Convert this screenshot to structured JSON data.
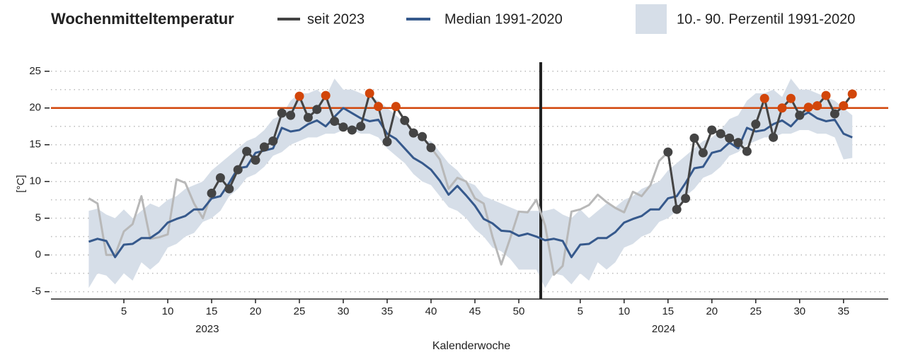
{
  "chart_data": {
    "type": "line",
    "title": "Wochenmitteltemperatur",
    "y_label": "[°C]",
    "x_label": "Kalenderwoche",
    "categories": [
      null,
      null,
      null,
      null,
      "5",
      null,
      null,
      null,
      null,
      "10",
      null,
      null,
      null,
      null,
      "15",
      null,
      null,
      null,
      null,
      "20",
      null,
      null,
      null,
      null,
      "25",
      null,
      null,
      null,
      null,
      "30",
      null,
      null,
      null,
      null,
      "35",
      null,
      null,
      null,
      null,
      "40",
      null,
      null,
      null,
      null,
      "45",
      null,
      null,
      null,
      null,
      "50",
      null,
      null,
      null,
      null,
      null,
      null,
      "5",
      null,
      null,
      null,
      null,
      "10",
      null,
      null,
      null,
      null,
      "15",
      null,
      null,
      null,
      null,
      "20",
      null,
      null,
      null,
      null,
      "25",
      null,
      null,
      null,
      null,
      "30",
      null,
      null,
      null,
      null,
      "35",
      null
    ],
    "x_groups": [
      {
        "label": "2023",
        "size": 52
      },
      {
        "label": "2024",
        "size": 36
      }
    ],
    "ylim": [
      -6,
      27
    ],
    "yticks": [
      -5,
      0,
      5,
      10,
      15,
      20,
      25
    ],
    "yminor_ticks": [
      -2.5,
      2.5,
      7.5,
      12.5,
      17.5,
      22.5
    ],
    "grid": true,
    "threshold": {
      "value": 20,
      "color": "#d2460a"
    },
    "highlight": [
      [
        14,
        39
      ],
      [
        66,
        87
      ]
    ],
    "series": [
      {
        "name": "seit 2023",
        "color": "#444444",
        "light_color": "#b8b8b8",
        "highlight_color": "#d2460a",
        "values": [
          7.7,
          7.0,
          0.0,
          0.0,
          3.2,
          4.2,
          8.0,
          2.2,
          2.4,
          2.8,
          10.3,
          9.8,
          7.0,
          5.0,
          8.4,
          10.5,
          9.0,
          11.6,
          14.1,
          12.9,
          14.7,
          15.5,
          19.3,
          19.0,
          21.6,
          18.7,
          19.8,
          21.7,
          18.2,
          17.4,
          17.0,
          17.5,
          22.0,
          20.2,
          15.4,
          20.2,
          18.3,
          16.6,
          16.1,
          14.6,
          13.0,
          9.0,
          10.5,
          10.0,
          7.7,
          7.0,
          2.5,
          -1.3,
          2.2,
          5.9,
          5.8,
          7.5,
          4.0,
          -2.7,
          -1.5,
          5.9,
          6.2,
          6.8,
          8.2,
          7.2,
          6.4,
          5.8,
          8.6,
          8.0,
          9.5,
          12.8,
          14.0,
          6.2,
          7.7,
          15.9,
          13.9,
          17.0,
          16.5,
          15.9,
          15.3,
          14.1,
          17.8,
          21.3,
          16.0,
          20.0,
          21.3,
          19.0,
          20.1,
          20.3,
          21.7,
          19.2,
          20.3,
          21.9
        ]
      },
      {
        "name": "Median 1991-2020",
        "color": "#36598c",
        "values": [
          1.8,
          2.2,
          1.9,
          -0.3,
          1.4,
          1.5,
          2.3,
          2.3,
          3.1,
          4.4,
          4.9,
          5.3,
          6.2,
          6.2,
          7.7,
          8.0,
          9.8,
          11.8,
          12.0,
          13.9,
          14.2,
          14.5,
          17.3,
          16.8,
          17.0,
          17.8,
          18.3,
          17.5,
          18.8,
          20.0,
          19.3,
          18.6,
          18.2,
          18.4,
          16.5,
          15.8,
          14.5,
          13.2,
          12.5,
          11.6,
          10.1,
          8.2,
          9.4,
          8.1,
          6.7,
          4.9,
          4.3,
          3.3,
          3.2,
          2.6,
          2.9,
          2.5,
          2.0,
          2.2,
          1.9,
          -0.3,
          1.4,
          1.5,
          2.3,
          2.3,
          3.1,
          4.4,
          4.9,
          5.3,
          6.2,
          6.2,
          7.7,
          8.0,
          9.8,
          11.8,
          12.0,
          13.9,
          14.2,
          15.3,
          14.5,
          17.3,
          16.8,
          17.0,
          17.8,
          18.3,
          17.5,
          18.8,
          19.4,
          18.6,
          18.2,
          18.4,
          16.5,
          16.0
        ]
      }
    ],
    "band": {
      "name": "10.- 90. Perzentil 1991-2020",
      "color": "#d6dee8",
      "low": [
        -4.5,
        -2.5,
        -2.8,
        -4.0,
        -2.5,
        -3.5,
        -1.0,
        -2.0,
        -1.0,
        1.0,
        1.5,
        2.5,
        3.0,
        4.5,
        5.0,
        6.0,
        8.0,
        9.0,
        10.5,
        11.0,
        12.0,
        13.5,
        14.0,
        15.0,
        15.5,
        16.0,
        16.0,
        16.5,
        16.5,
        17.0,
        17.0,
        16.5,
        16.5,
        16.0,
        14.5,
        13.5,
        12.5,
        11.0,
        10.0,
        9.5,
        8.0,
        6.5,
        6.0,
        5.0,
        3.5,
        2.5,
        1.0,
        0.5,
        -0.5,
        -2.0,
        -2.0,
        -2.0,
        -4.5,
        -2.5,
        -2.8,
        -4.0,
        -2.5,
        -3.5,
        -1.0,
        -2.0,
        -1.0,
        1.0,
        1.5,
        2.5,
        3.0,
        4.5,
        5.0,
        6.0,
        8.0,
        9.0,
        10.5,
        11.0,
        12.0,
        13.5,
        14.0,
        15.0,
        15.5,
        16.0,
        16.0,
        16.5,
        16.5,
        17.0,
        17.0,
        16.5,
        16.5,
        16.0,
        13.0,
        13.2
      ],
      "high": [
        6.0,
        6.3,
        5.5,
        5.0,
        6.2,
        5.0,
        6.0,
        7.0,
        6.5,
        7.5,
        8.0,
        9.0,
        9.5,
        10.0,
        11.5,
        12.5,
        13.5,
        14.5,
        15.5,
        16.0,
        17.0,
        18.5,
        19.0,
        21.0,
        22.0,
        22.0,
        22.5,
        21.5,
        24.0,
        22.5,
        22.5,
        22.0,
        21.5,
        21.0,
        20.0,
        19.0,
        18.0,
        16.5,
        15.5,
        15.5,
        14.0,
        12.5,
        11.5,
        10.0,
        9.5,
        8.0,
        7.5,
        7.0,
        6.5,
        6.0,
        6.0,
        6.0,
        6.0,
        6.3,
        5.5,
        5.0,
        6.2,
        5.0,
        6.0,
        7.0,
        6.5,
        7.5,
        8.0,
        9.0,
        9.5,
        10.0,
        11.5,
        12.5,
        13.5,
        14.5,
        15.5,
        16.0,
        17.0,
        18.5,
        19.0,
        21.0,
        22.0,
        22.0,
        22.5,
        21.5,
        24.0,
        22.5,
        22.5,
        22.0,
        21.5,
        21.0,
        20.0,
        19.0
      ]
    }
  }
}
